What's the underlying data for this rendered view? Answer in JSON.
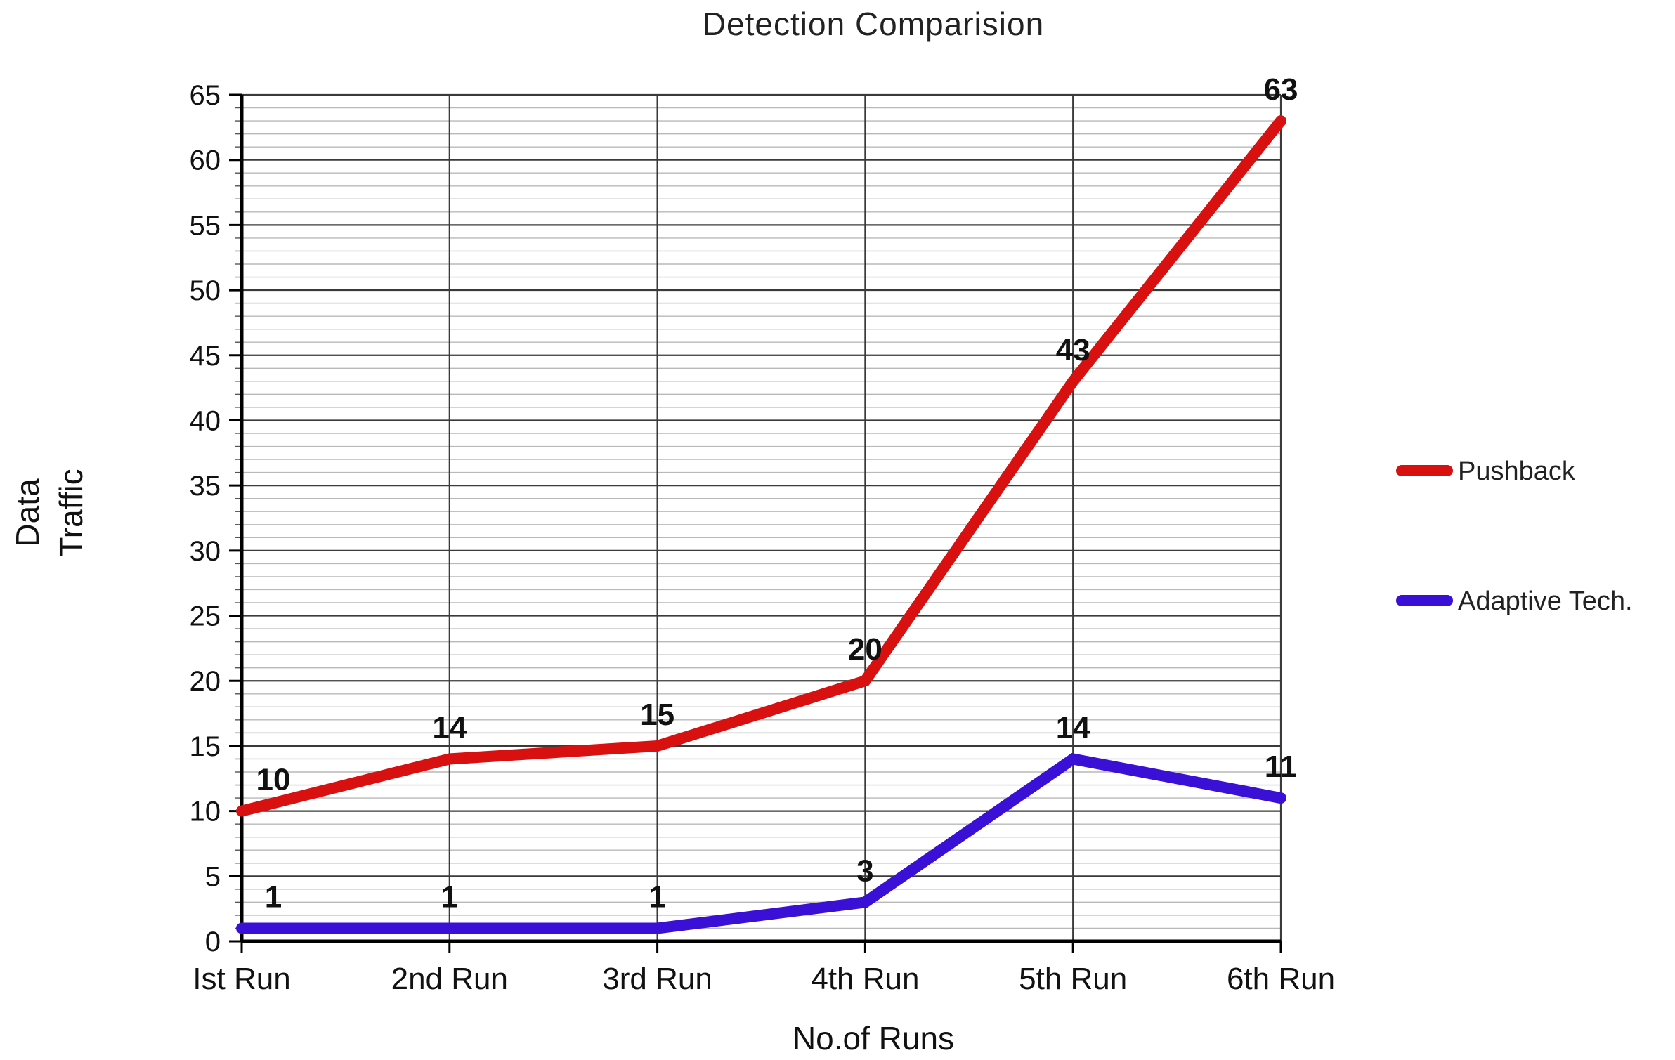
{
  "chart_data": {
    "type": "line",
    "title": "Detection Comparision",
    "xlabel": "No.of Runs",
    "ylabel_lines": [
      "Data",
      "Traffic"
    ],
    "categories": [
      "Ist Run",
      "2nd Run",
      "3rd Run",
      "4th Run",
      "5th Run",
      "6th Run"
    ],
    "ylim": [
      0,
      65
    ],
    "yticks": [
      0,
      5,
      10,
      15,
      20,
      25,
      30,
      35,
      40,
      45,
      50,
      55,
      60,
      65
    ],
    "minor_grid_step": 1,
    "grid": true,
    "legend_position": "right",
    "series": [
      {
        "name": "Pushback",
        "color": "#d81010",
        "values": [
          10,
          14,
          15,
          20,
          43,
          63
        ]
      },
      {
        "name": "Adaptive Tech.",
        "color": "#3a10d6",
        "values": [
          1,
          1,
          1,
          3,
          14,
          11
        ]
      }
    ]
  }
}
